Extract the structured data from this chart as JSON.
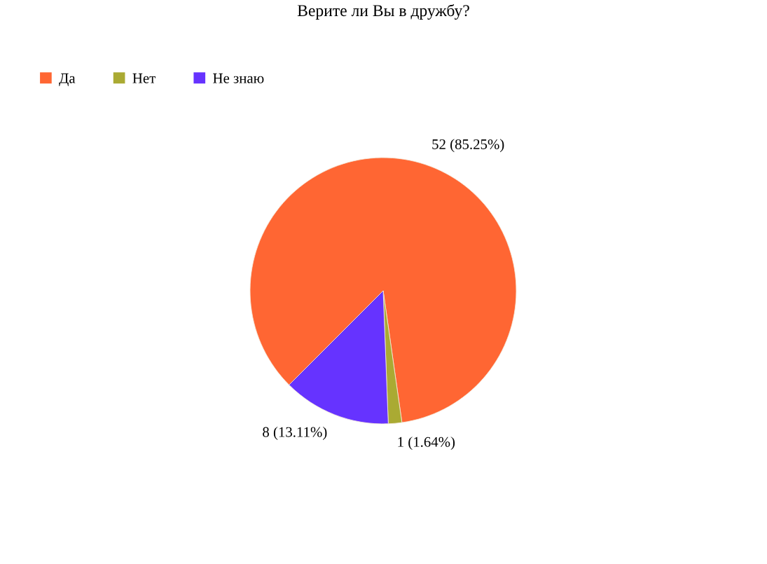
{
  "chart_data": {
    "type": "pie",
    "title": "Верите ли Вы в дружбу?",
    "categories": [
      "Да",
      "Нет",
      "Не знаю"
    ],
    "values": [
      52,
      1,
      8
    ],
    "colors": [
      "#ff6633",
      "#aaaa33",
      "#6633ff"
    ],
    "value_labels": [
      "52 (85.25%)",
      "1 (1.64%)",
      "8 (13.11%)"
    ],
    "legend": "top left"
  }
}
